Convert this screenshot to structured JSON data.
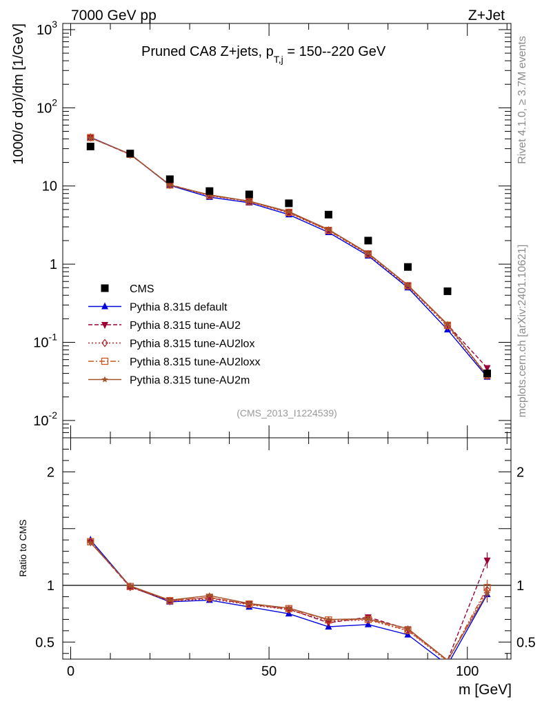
{
  "header": {
    "left_label": "7000 GeV pp",
    "right_label": "Z+Jet"
  },
  "side_labels": {
    "rivet": "Rivet 4.1.0, ≥ 3.7M events",
    "mcplots": "mcplots.cern.ch [arXiv:2401.10621]"
  },
  "colors": {
    "cms": "#000000",
    "default": "#0000dd",
    "au2": "#990033",
    "au2lox": "#b22222",
    "au2loxx": "#cc5522",
    "au2m": "#a0522d"
  },
  "chart_data": {
    "type": "line",
    "title": {
      "main": "Pruned CA8 Z+jets, p",
      "sub": "T,j",
      "rest": " = 150--220 GeV"
    },
    "analysis_tag": "(CMS_2013_I1224539)",
    "main_panel": {
      "ylabel": "1000/σ  dσ)/dm [1/GeV]",
      "yscale": "log",
      "ylim": [
        0.006,
        1200
      ],
      "ytick_labels": [
        "10^-2",
        "10^-1",
        "1",
        "10",
        "10^2",
        "10^3"
      ]
    },
    "ratio_panel": {
      "ylabel": "Ratio to CMS",
      "ylim": [
        0.35,
        2.3
      ],
      "ytick_values": [
        0.5,
        1,
        2
      ],
      "ytick_labels": [
        "0.5",
        "1",
        "2"
      ],
      "reference_line": 1
    },
    "xaxis": {
      "label": "m [GeV]",
      "xlim": [
        -2,
        111
      ],
      "tick_values": [
        0,
        50,
        100
      ],
      "tick_labels": [
        "0",
        "50",
        "100"
      ]
    },
    "x": [
      5,
      15,
      25,
      35,
      45,
      55,
      65,
      75,
      85,
      95,
      105
    ],
    "data": {
      "name": "CMS",
      "values": [
        32,
        26,
        12.2,
        8.6,
        7.8,
        6.0,
        4.3,
        2.0,
        0.92,
        0.45,
        0.04
      ]
    },
    "series": [
      {
        "name": "Pythia 8.315 default",
        "color_key": "default",
        "marker": "triangle-up",
        "dash": "",
        "values": [
          42,
          25.5,
          10.2,
          7.2,
          6.1,
          4.3,
          2.55,
          1.28,
          0.5,
          0.145,
          0.036
        ],
        "ratio": [
          1.4,
          0.99,
          0.855,
          0.87,
          0.81,
          0.75,
          0.635,
          0.655,
          0.565,
          0.3,
          0.92
        ]
      },
      {
        "name": "Pythia 8.315 tune-AU2",
        "color_key": "au2",
        "marker": "triangle-down",
        "dash": "6,3",
        "values": [
          41.5,
          25.2,
          10.4,
          7.6,
          6.4,
          4.6,
          2.75,
          1.38,
          0.54,
          0.168,
          0.047
        ],
        "ratio": [
          1.38,
          0.985,
          0.865,
          0.89,
          0.835,
          0.79,
          0.67,
          0.72,
          0.615,
          0.34,
          1.22
        ]
      },
      {
        "name": "Pythia 8.315 tune-AU2lox",
        "color_key": "au2lox",
        "marker": "diamond",
        "dash": "2,3",
        "values": [
          41.8,
          25.3,
          10.3,
          7.5,
          6.3,
          4.5,
          2.68,
          1.33,
          0.52,
          0.16,
          0.037
        ],
        "ratio": [
          1.385,
          0.985,
          0.86,
          0.88,
          0.83,
          0.785,
          0.685,
          0.695,
          0.6,
          0.33,
          0.96
        ]
      },
      {
        "name": "Pythia 8.315 tune-AU2loxx",
        "color_key": "au2loxx",
        "marker": "square-open",
        "dash": "8,3,2,3",
        "values": [
          41.6,
          25.4,
          10.3,
          7.6,
          6.3,
          4.6,
          2.7,
          1.35,
          0.53,
          0.165,
          0.038
        ],
        "ratio": [
          1.385,
          0.99,
          0.865,
          0.895,
          0.835,
          0.795,
          0.695,
          0.7,
          0.605,
          0.335,
          0.98
        ]
      },
      {
        "name": "Pythia 8.315 tune-AU2m",
        "color_key": "au2m",
        "marker": "star",
        "dash": "",
        "values": [
          41.2,
          25.6,
          10.3,
          7.7,
          6.4,
          4.7,
          2.78,
          1.38,
          0.54,
          0.17,
          0.037
        ],
        "ratio": [
          1.375,
          0.995,
          0.87,
          0.91,
          0.84,
          0.8,
          0.7,
          0.705,
          0.62,
          0.34,
          0.93
        ]
      }
    ]
  }
}
